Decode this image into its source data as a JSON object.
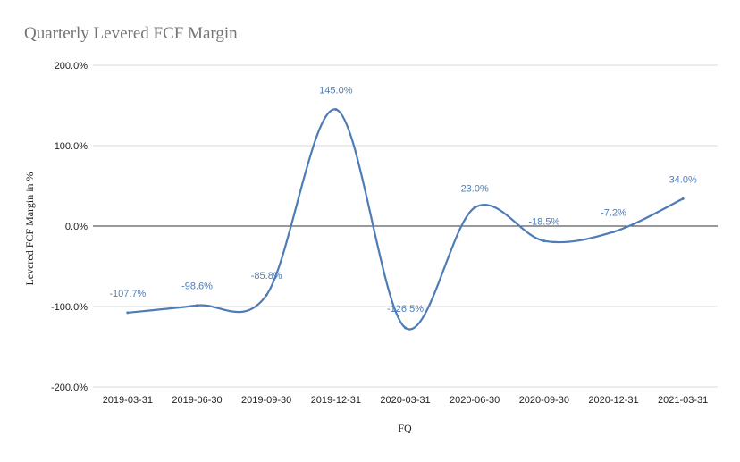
{
  "chart_data": {
    "type": "line",
    "title": "Quarterly Levered FCF Margin",
    "xlabel": "FQ",
    "ylabel": "Levered FCF Margin in %",
    "categories": [
      "2019-03-31",
      "2019-06-30",
      "2019-09-30",
      "2019-12-31",
      "2020-03-31",
      "2020-06-30",
      "2020-09-30",
      "2020-12-31",
      "2021-03-31"
    ],
    "series": [
      {
        "values": [
          -107.7,
          -98.6,
          -85.8,
          145.0,
          -126.5,
          23.0,
          -18.5,
          -7.2,
          34.0
        ],
        "labels": [
          "-107.7%",
          "-98.6%",
          "-85.8%",
          "145.0%",
          "-126.5%",
          "23.0%",
          "-18.5%",
          "-7.2%",
          "34.0%"
        ],
        "color": "#4e7cb6"
      }
    ],
    "y_ticks": [
      200,
      100,
      0,
      -100,
      -200
    ],
    "y_tick_labels": [
      "200.0%",
      "100.0%",
      "0.0%",
      "-100.0%",
      "-200.0%"
    ],
    "ylim": [
      -200,
      200
    ],
    "grid": true,
    "smooth": true,
    "legend": "none"
  }
}
